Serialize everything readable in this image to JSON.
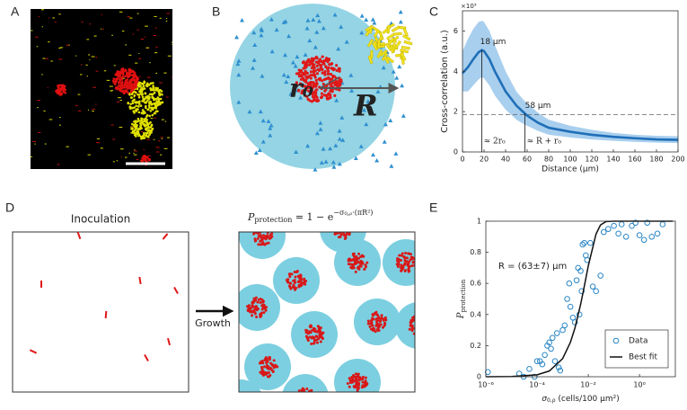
{
  "panel_labels": [
    "A",
    "B",
    "C",
    "D",
    "E"
  ],
  "panel_b": {
    "r_label": "r₀",
    "R_label": "R"
  },
  "panel_d": {
    "left_title": "Inoculation",
    "arrow_label": "Growth",
    "formula": {
      "symbol": "P",
      "subscript": "protection",
      "rhs": " = 1 − e",
      "exponent": "−σ₀,ᵨ·(πR²)"
    }
  },
  "chart_data": [
    {
      "type": "line",
      "multiplier": "×10³",
      "x_label": "Distance (μm)",
      "y_label": "Cross-correlation (a.u.)",
      "x": [
        0,
        5,
        10,
        15,
        18,
        20,
        25,
        30,
        40,
        50,
        58,
        60,
        70,
        80,
        100,
        120,
        140,
        160,
        180,
        200
      ],
      "series": [
        {
          "color": "#1f6fb8",
          "values": [
            3.9,
            4.2,
            4.6,
            4.95,
            5.05,
            5.0,
            4.6,
            4.0,
            3.0,
            2.3,
            1.9,
            1.8,
            1.45,
            1.2,
            1.0,
            0.85,
            0.75,
            0.68,
            0.62,
            0.6
          ],
          "upper": [
            5.0,
            5.6,
            6.1,
            6.45,
            6.5,
            6.45,
            6.0,
            5.3,
            4.0,
            3.0,
            2.5,
            2.4,
            1.95,
            1.6,
            1.3,
            1.1,
            0.95,
            0.85,
            0.8,
            0.78
          ],
          "lower": [
            3.0,
            3.0,
            3.3,
            3.6,
            3.7,
            3.65,
            3.3,
            2.8,
            2.1,
            1.6,
            1.35,
            1.3,
            1.05,
            0.85,
            0.72,
            0.62,
            0.55,
            0.5,
            0.46,
            0.44
          ],
          "band_color": "#a9cfee"
        }
      ],
      "threshold": 1.85,
      "annotations": [
        {
          "text": "18 μm",
          "x": 18,
          "note": "≈ 2r₀"
        },
        {
          "text": "58 μm",
          "x": 58,
          "note": "≈ R + r₀"
        }
      ],
      "xlim": [
        0,
        200
      ],
      "xticks": [
        0,
        20,
        40,
        60,
        80,
        100,
        120,
        140,
        160,
        180,
        200
      ],
      "ylim": [
        0,
        7
      ],
      "yticks": [
        0,
        2,
        4,
        6
      ]
    },
    {
      "type": "scatter",
      "x_label": {
        "symbol": "σ",
        "subscript": "0,ρ",
        "text": " (cells/100 μm²)"
      },
      "y_label": {
        "symbol": "P",
        "subscript": "protection"
      },
      "annotation": "R = (63±7) μm",
      "log_x": true,
      "legend": "lower right",
      "series": [
        {
          "name": "Data",
          "color": "#2a86c5",
          "x": [
            1.2e-06,
            2e-05,
            3e-05,
            5e-05,
            8e-05,
            0.0001,
            0.00013,
            0.00016,
            0.0002,
            0.00025,
            0.0003,
            0.00035,
            0.0004,
            0.0005,
            0.0006,
            0.0007,
            0.0008,
            0.001,
            0.0012,
            0.0015,
            0.0018,
            0.002,
            0.0025,
            0.003,
            0.0035,
            0.004,
            0.0045,
            0.005,
            0.0055,
            0.006,
            0.007,
            0.008,
            0.009,
            0.012,
            0.015,
            0.02,
            0.03,
            0.04,
            0.06,
            0.1,
            0.15,
            0.2,
            0.3,
            0.5,
            0.7,
            1,
            1.5,
            2,
            3,
            5,
            8
          ],
          "values": [
            0.03,
            0.02,
            0.0,
            0.05,
            0.0,
            0.1,
            0.1,
            0.08,
            0.14,
            0.2,
            0.22,
            0.18,
            0.25,
            0.1,
            0.28,
            0.06,
            0.04,
            0.3,
            0.33,
            0.5,
            0.6,
            0.45,
            0.38,
            0.35,
            0.62,
            0.7,
            0.4,
            0.68,
            0.55,
            0.85,
            0.86,
            0.78,
            0.75,
            0.86,
            0.58,
            0.55,
            0.65,
            0.93,
            0.95,
            0.97,
            0.92,
            0.98,
            0.9,
            0.97,
            0.99,
            0.91,
            0.88,
            0.99,
            0.9,
            0.92,
            0.98
          ]
        },
        {
          "name": "Best fit",
          "color": "#111111",
          "x": [
            1e-06,
            1e-05,
            0.0001,
            0.0003,
            0.001,
            0.002,
            0.003,
            0.005,
            0.007,
            0.01,
            0.02,
            0.03,
            0.05,
            0.1,
            20
          ],
          "values": [
            0.0001,
            0.0012,
            0.0124,
            0.0367,
            0.117,
            0.221,
            0.312,
            0.464,
            0.582,
            0.713,
            0.917,
            0.976,
            0.998,
            1.0,
            1.0
          ]
        }
      ],
      "xlim": [
        1e-06,
        25
      ],
      "xticks": [
        {
          "value": 1e-06,
          "label": "10⁻⁶"
        },
        {
          "value": 0.0001,
          "label": "10⁻⁴"
        },
        {
          "value": 0.01,
          "label": "10⁻²"
        },
        {
          "value": 1,
          "label": "10⁰"
        }
      ],
      "ylim": [
        0,
        1
      ],
      "yticks": [
        0,
        0.2,
        0.4,
        0.6,
        0.8,
        1
      ]
    }
  ]
}
